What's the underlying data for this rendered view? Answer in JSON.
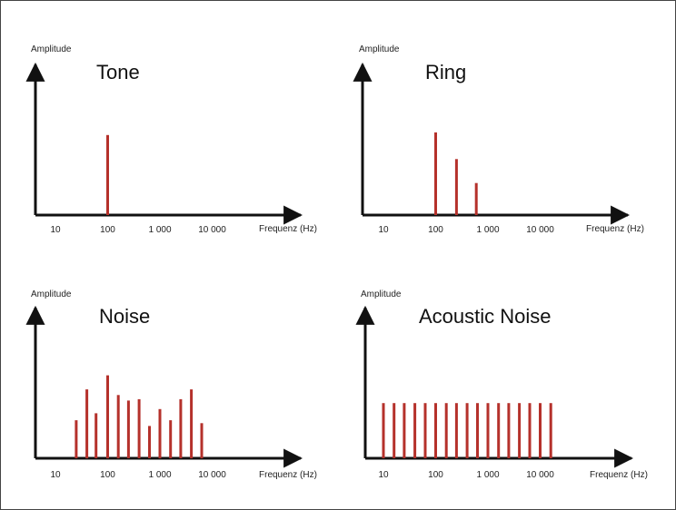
{
  "colors": {
    "axis": "#111111",
    "spike": "#b5312b",
    "text": "#222222"
  },
  "tick_labels": [
    "10",
    "100",
    "1 000",
    "10 000"
  ],
  "chart_data": [
    {
      "type": "bar",
      "title": "Tone",
      "ylabel": "Amplitude",
      "xlabel": "Frequenz (Hz)",
      "x_scale": "log",
      "x_ticks": [
        10,
        100,
        1000,
        10000
      ],
      "ylim": [
        0,
        100
      ],
      "series": [
        {
          "x": [
            100
          ],
          "values": [
            60
          ]
        }
      ]
    },
    {
      "type": "bar",
      "title": "Ring",
      "ylabel": "Amplitude",
      "xlabel": "Frequenz (Hz)",
      "x_scale": "log",
      "x_ticks": [
        10,
        100,
        1000,
        10000
      ],
      "ylim": [
        0,
        100
      ],
      "series": [
        {
          "x": [
            100,
            250,
            600
          ],
          "values": [
            62,
            42,
            24
          ]
        }
      ]
    },
    {
      "type": "bar",
      "title": "Noise",
      "ylabel": "Amplitude",
      "xlabel": "Frequenz (Hz)",
      "x_scale": "log",
      "x_ticks": [
        10,
        100,
        1000,
        10000
      ],
      "ylim": [
        0,
        100
      ],
      "series": [
        {
          "x": [
            25,
            40,
            60,
            100,
            160,
            250,
            400,
            630,
            1000,
            1600,
            2500,
            4000,
            6300
          ],
          "values": [
            27,
            49,
            32,
            59,
            45,
            41,
            42,
            23,
            35,
            27,
            42,
            49,
            25
          ]
        }
      ]
    },
    {
      "type": "bar",
      "title": "Acoustic Noise",
      "ylabel": "Amplitude",
      "xlabel": "Frequenz (Hz)",
      "x_scale": "log",
      "x_ticks": [
        10,
        100,
        1000,
        10000
      ],
      "ylim": [
        0,
        100
      ],
      "series": [
        {
          "x": [
            10,
            16,
            25,
            40,
            63,
            100,
            160,
            250,
            400,
            630,
            1000,
            1600,
            2500,
            4000,
            6300,
            10000,
            16000
          ],
          "values": [
            38,
            38,
            38,
            38,
            38,
            38,
            38,
            38,
            38,
            38,
            38,
            38,
            38,
            38,
            38,
            38,
            38
          ]
        }
      ]
    }
  ]
}
